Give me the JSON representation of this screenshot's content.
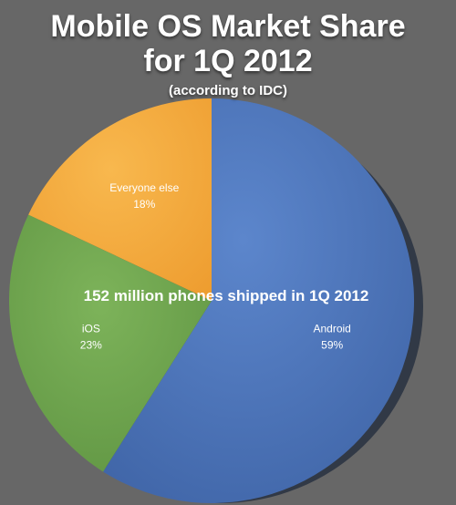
{
  "chart_data": {
    "type": "pie",
    "title_line1": "Mobile OS Market Share",
    "title_line2": "for 1Q 2012",
    "subtitle": "(according to IDC)",
    "annotation": "152 million phones shipped in 1Q 2012",
    "slices": [
      {
        "label": "Android",
        "value": 59,
        "value_label": "59%",
        "color": "#4A72B8"
      },
      {
        "label": "iOS",
        "value": 23,
        "value_label": "23%",
        "color": "#6EA54D"
      },
      {
        "label": "Everyone else",
        "value": 18,
        "value_label": "18%",
        "color": "#F5A93C"
      }
    ],
    "start_position": "top",
    "direction": "clockwise",
    "legend": "none"
  }
}
